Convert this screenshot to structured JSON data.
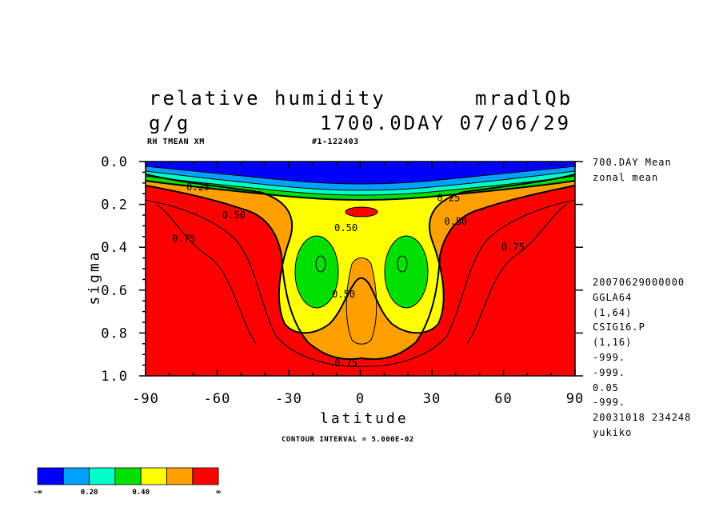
{
  "header": {
    "title_left": "relative humidity",
    "title_right": "mradlQb",
    "units": "g/g",
    "time": "1700.0DAY 07/06/29",
    "sub_left": "RH TMEAN XM",
    "sub_mid": "#1-122403"
  },
  "side_notes": {
    "top": [
      "700.DAY Mean",
      "zonal mean"
    ],
    "meta": [
      "20070629000000",
      "GGLA64",
      "(1,64)",
      "CSIG16.P",
      "(1,16)",
      "-999.",
      "-999.",
      "0.05",
      "-999.",
      "20031018 234248",
      "yukiko"
    ]
  },
  "footer": {
    "contour_interval": "CONTOUR INTERVAL = 5.000E-02"
  },
  "chart_data": {
    "type": "contour",
    "xlabel": "latitude",
    "ylabel": "sigma",
    "xlim": [
      -90,
      90
    ],
    "ylim": [
      1.0,
      0.0
    ],
    "x_ticks": [
      "-90",
      "-60",
      "-30",
      "0",
      "30",
      "60",
      "90"
    ],
    "y_ticks": [
      "0.0",
      "0.2",
      "0.4",
      "0.6",
      "0.8",
      "1.0"
    ],
    "contour_labels": [
      {
        "text": "0.25",
        "lat": -68,
        "sigma": 0.12
      },
      {
        "text": "0.25",
        "lat": 37,
        "sigma": 0.17
      },
      {
        "text": "0.50",
        "lat": -53,
        "sigma": 0.25
      },
      {
        "text": "0.50",
        "lat": -6,
        "sigma": 0.31
      },
      {
        "text": "0.50",
        "lat": 40,
        "sigma": 0.28
      },
      {
        "text": "0.50",
        "lat": -7,
        "sigma": 0.62
      },
      {
        "text": "0.75",
        "lat": -74,
        "sigma": 0.36
      },
      {
        "text": "0.75",
        "lat": 64,
        "sigma": 0.4
      },
      {
        "text": "0.75",
        "lat": -6,
        "sigma": 0.94
      }
    ],
    "colorbar": {
      "labels": [
        "-∞",
        "0.20",
        "0.40",
        "∞"
      ],
      "colors": [
        "#0000ff",
        "#00a0ff",
        "#00ffc8",
        "#00e000",
        "#ffff00",
        "#ffa000",
        "#ff0000"
      ]
    }
  }
}
